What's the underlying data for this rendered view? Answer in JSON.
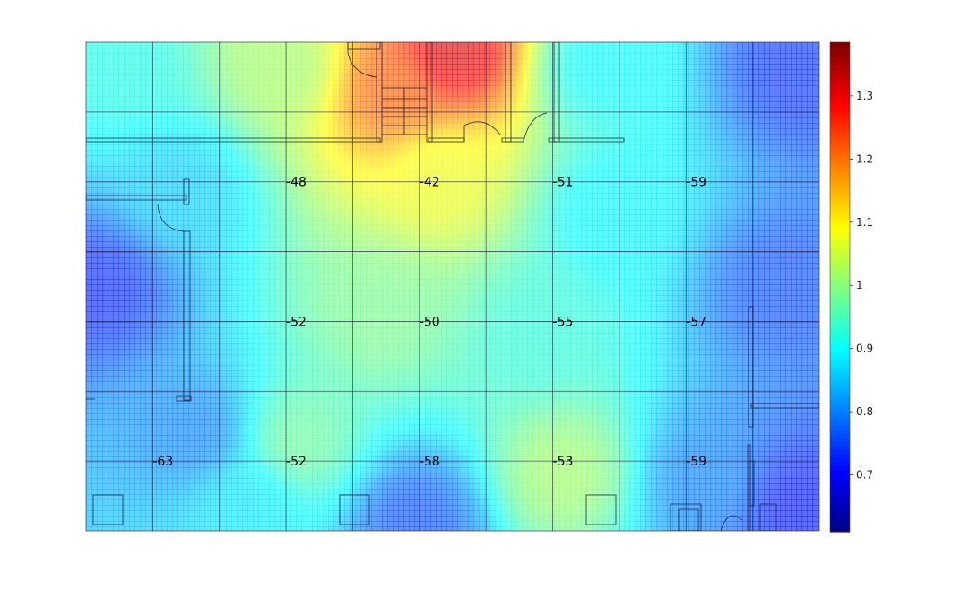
{
  "chart_data": {
    "type": "heatmap",
    "title": "",
    "xlabel": "",
    "ylabel": "",
    "grid": true,
    "colormap": "jet",
    "colorbar": {
      "range": [
        0.61,
        1.385
      ],
      "ticks": [
        0.7,
        0.8,
        0.9,
        1,
        1.1,
        1.2,
        1.3
      ],
      "tick_labels": [
        "0.7",
        "0.8",
        "0.9",
        "1",
        "1.1",
        "1.2",
        "1.3"
      ]
    },
    "grid_columns": 11,
    "grid_rows": 7,
    "measurements": [
      {
        "col": 3,
        "row": 2,
        "value": -48,
        "label": "-48"
      },
      {
        "col": 5,
        "row": 2,
        "value": -42,
        "label": "-42"
      },
      {
        "col": 7,
        "row": 2,
        "value": -51,
        "label": "-51"
      },
      {
        "col": 9,
        "row": 2,
        "value": -59,
        "label": "-59"
      },
      {
        "col": 3,
        "row": 4,
        "value": -52,
        "label": "-52"
      },
      {
        "col": 5,
        "row": 4,
        "value": -50,
        "label": "-50"
      },
      {
        "col": 7,
        "row": 4,
        "value": -55,
        "label": "-55"
      },
      {
        "col": 9,
        "row": 4,
        "value": -57,
        "label": "-57"
      },
      {
        "col": 1,
        "row": 6,
        "value": -63,
        "label": "-63"
      },
      {
        "col": 3,
        "row": 6,
        "value": -52,
        "label": "-52"
      },
      {
        "col": 5,
        "row": 6,
        "value": -58,
        "label": "-58"
      },
      {
        "col": 7,
        "row": 6,
        "value": -53,
        "label": "-53"
      },
      {
        "col": 9,
        "row": 6,
        "value": -59,
        "label": "-59"
      }
    ],
    "colors": {
      "grid_line": "#1a1a3a",
      "floorplan": "#1e2a3a"
    }
  }
}
